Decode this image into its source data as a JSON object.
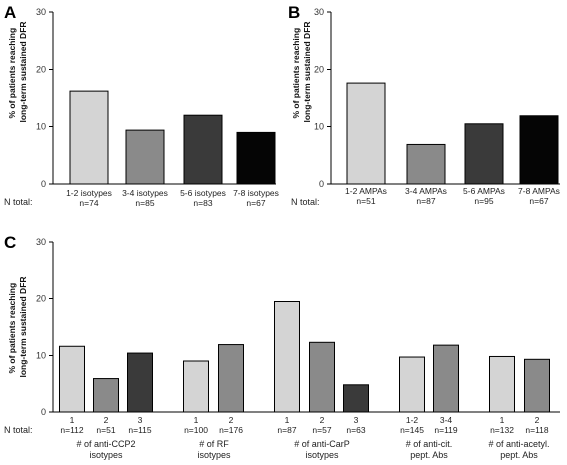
{
  "chart_data": [
    {
      "panel": "A",
      "type": "bar",
      "ylabel": [
        "% of patients reaching",
        "long-term sustained DFR"
      ],
      "ylim": [
        0,
        30
      ],
      "yticks": [
        0,
        10,
        20,
        30
      ],
      "ntotal_label": "N total:",
      "categories": [
        "1-2 isotypes",
        "3-4 isotypes",
        "5-6 isotypes",
        "7-8 isotypes"
      ],
      "n": [
        "n=74",
        "n=85",
        "n=83",
        "n=67"
      ],
      "values": [
        16.2,
        9.4,
        12.0,
        9.0
      ],
      "colors": [
        "#d4d4d4",
        "#8a8a8a",
        "#3a3a3a",
        "#050505"
      ]
    },
    {
      "panel": "B",
      "type": "bar",
      "ylabel": [
        "% of patients reaching",
        "long-term sustained DFR"
      ],
      "ylim": [
        0,
        30
      ],
      "yticks": [
        0,
        10,
        20,
        30
      ],
      "ntotal_label": "N total:",
      "categories": [
        "1-2 AMPAs",
        "3-4 AMPAs",
        "5-6 AMPAs",
        "7-8 AMPAs"
      ],
      "n": [
        "n=51",
        "n=87",
        "n=95",
        "n=67"
      ],
      "values": [
        17.6,
        6.9,
        10.5,
        11.9
      ],
      "colors": [
        "#d4d4d4",
        "#8a8a8a",
        "#3a3a3a",
        "#050505"
      ]
    },
    {
      "panel": "C",
      "type": "bar",
      "ylabel": [
        "% of patients reaching",
        "long-term sustained DFR"
      ],
      "ylim": [
        0,
        30
      ],
      "yticks": [
        0,
        10,
        20,
        30
      ],
      "ntotal_label": "N total:",
      "groups": [
        {
          "label": [
            "# of anti-CCP2",
            "isotypes"
          ],
          "categories": [
            "1",
            "2",
            "3"
          ],
          "n": [
            "n=112",
            "n=51",
            "n=115"
          ],
          "values": [
            11.6,
            5.9,
            10.4
          ],
          "colors": [
            "#d4d4d4",
            "#8a8a8a",
            "#3a3a3a"
          ]
        },
        {
          "label": [
            "# of RF",
            "isotypes"
          ],
          "categories": [
            "1",
            "2"
          ],
          "n": [
            "n=100",
            "n=176"
          ],
          "values": [
            9.0,
            11.9
          ],
          "colors": [
            "#d4d4d4",
            "#8a8a8a"
          ]
        },
        {
          "label": [
            "# of anti-CarP",
            "isotypes"
          ],
          "categories": [
            "1",
            "2",
            "3"
          ],
          "n": [
            "n=87",
            "n=57",
            "n=63"
          ],
          "values": [
            19.5,
            12.3,
            4.8
          ],
          "colors": [
            "#d4d4d4",
            "#8a8a8a",
            "#3a3a3a"
          ]
        },
        {
          "label": [
            "# of anti-cit.",
            "pept. Abs"
          ],
          "categories": [
            "1-2",
            "3-4"
          ],
          "n": [
            "n=145",
            "n=119"
          ],
          "values": [
            9.7,
            11.8
          ],
          "colors": [
            "#d4d4d4",
            "#8a8a8a"
          ]
        },
        {
          "label": [
            "# of anti-acetyl.",
            "pept. Abs"
          ],
          "categories": [
            "1",
            "2"
          ],
          "n": [
            "n=132",
            "n=118"
          ],
          "values": [
            9.8,
            9.3
          ],
          "colors": [
            "#d4d4d4",
            "#8a8a8a"
          ]
        }
      ]
    }
  ]
}
